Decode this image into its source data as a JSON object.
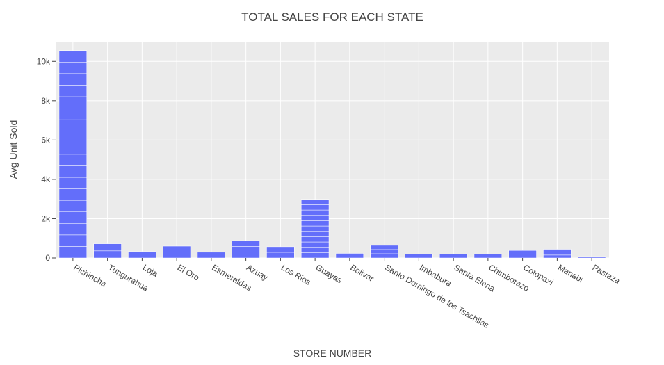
{
  "chart_data": {
    "type": "bar",
    "title": "TOTAL SALES FOR EACH STATE",
    "xlabel": "STORE NUMBER",
    "ylabel": "Avg Unit Sold",
    "categories": [
      "Pichincha",
      "Tungurahua",
      "Loja",
      "El Oro",
      "Esmeraldas",
      "Azuay",
      "Los Rios",
      "Guayas",
      "Bolivar",
      "Santo Domingo de los Tsachilas",
      "Imbabura",
      "Santa Elena",
      "Chimborazo",
      "Cotopaxi",
      "Manabi",
      "Pastaza"
    ],
    "values": [
      10550,
      720,
      330,
      600,
      290,
      880,
      570,
      2980,
      230,
      640,
      200,
      200,
      200,
      380,
      440,
      70
    ],
    "segments_per_bar": [
      18,
      2,
      1,
      2,
      1,
      3,
      2,
      11,
      1,
      3,
      1,
      1,
      1,
      2,
      3,
      1
    ],
    "ylim": [
      0,
      11000
    ],
    "yticks": [
      0,
      2000,
      4000,
      6000,
      8000,
      10000
    ],
    "ytick_labels": [
      "0",
      "2k",
      "4k",
      "6k",
      "8k",
      "10k"
    ],
    "grid": true,
    "colors": {
      "bar": "#636efa",
      "bar_segment_line": "#ffffff",
      "plot_background": "#ebebeb",
      "grid": "#ffffff",
      "text": "#444444"
    }
  }
}
